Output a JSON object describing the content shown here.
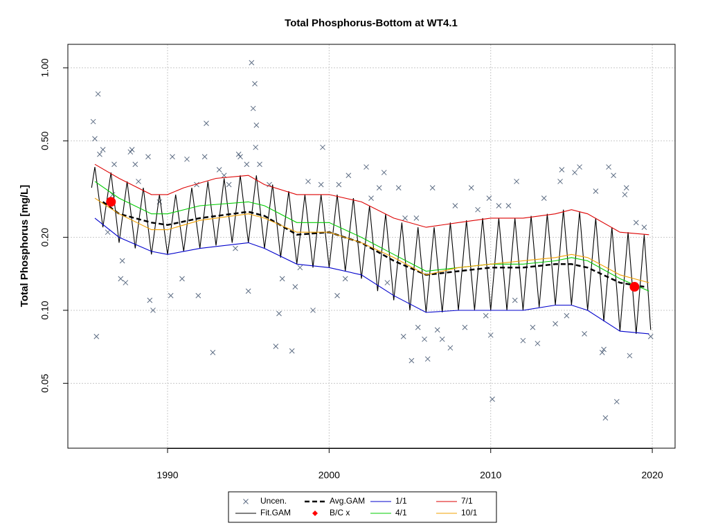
{
  "chart_data": {
    "type": "line",
    "title": "Total Phosphorus-Bottom at WT4.1",
    "y_label": "Total Phosphorus [mg/L]",
    "log_y": true,
    "grid": true,
    "legend": "bottom",
    "xlim": [
      1983.83,
      2021.41
    ],
    "xticks": [
      1990,
      2000,
      2010,
      2020
    ],
    "ylim": [
      0.027,
      1.25
    ],
    "yticks": [
      0.05,
      {
        "value": 0.1,
        "label": "0.10"
      },
      {
        "value": 0.2,
        "label": "0.20"
      },
      {
        "value": 0.5,
        "label": "0.50"
      },
      {
        "value": 1,
        "label": "1.00"
      }
    ],
    "series": [
      {
        "name": "Uncen.",
        "color": "#5b6b82",
        "style": "points",
        "x": [
          1985.4,
          1985.5,
          1985.6,
          1985.7,
          1985.8,
          1986,
          1986.3,
          1986.6,
          1986.7,
          1987.1,
          1987.2,
          1987.4,
          1987.7,
          1987.8,
          1988,
          1988.2,
          1988.8,
          1988.9,
          1989.1,
          1989.5,
          1990.2,
          1990.3,
          1990.9,
          1991.2,
          1991.8,
          1991.9,
          1992.3,
          1992.4,
          1992.8,
          1993.2,
          1993.5,
          1993.8,
          1994.2,
          1994.4,
          1994.5,
          1994.9,
          1995,
          1995.2,
          1995.3,
          1995.4,
          1995.5,
          1995.45,
          1995.7,
          1996.3,
          1996.7,
          1996.9,
          1997.1,
          1997.7,
          1997.9,
          1998.2,
          1998.7,
          1999,
          1999.6,
          1999.5,
          2000.5,
          2000.6,
          2001,
          2001.2,
          2002.3,
          2002.6,
          2003.1,
          2003.4,
          2003.6,
          2004.3,
          2004.6,
          2004.7,
          2005.1,
          2005.4,
          2005.5,
          2005.9,
          2006.1,
          2006.4,
          2006.7,
          2007,
          2007.5,
          2007.8,
          2008.4,
          2008.8,
          2009.2,
          2009.7,
          2009.9,
          2010,
          2010.1,
          2010.5,
          2011.1,
          2011.5,
          2011.6,
          2012,
          2012.6,
          2012.9,
          2013.3,
          2014,
          2014.3,
          2014.4,
          2014.7,
          2015.2,
          2015.5,
          2015.8,
          2016.5,
          2016.9,
          2017,
          2017.1,
          2017.3,
          2017.6,
          2017.8,
          2018.3,
          2018.4,
          2018.6,
          2019,
          2019.5,
          2019.9
        ],
        "values": [
          0.6,
          0.51,
          0.078,
          0.78,
          0.44,
          0.46,
          0.21,
          0.3,
          0.4,
          0.135,
          0.16,
          0.13,
          0.45,
          0.46,
          0.4,
          0.34,
          0.43,
          0.11,
          0.1,
          0.28,
          0.115,
          0.43,
          0.135,
          0.42,
          0.33,
          0.115,
          0.43,
          0.59,
          0.067,
          0.38,
          0.36,
          0.33,
          0.18,
          0.44,
          0.43,
          0.4,
          0.12,
          1.05,
          0.68,
          0.86,
          0.58,
          0.47,
          0.4,
          0.33,
          0.071,
          0.097,
          0.135,
          0.068,
          0.125,
          0.15,
          0.34,
          0.1,
          0.47,
          0.33,
          0.115,
          0.33,
          0.135,
          0.36,
          0.39,
          0.29,
          0.32,
          0.37,
          0.13,
          0.32,
          0.078,
          0.24,
          0.062,
          0.24,
          0.085,
          0.076,
          0.063,
          0.32,
          0.083,
          0.076,
          0.07,
          0.27,
          0.085,
          0.32,
          0.26,
          0.095,
          0.29,
          0.079,
          0.043,
          0.27,
          0.27,
          0.11,
          0.34,
          0.075,
          0.085,
          0.073,
          0.29,
          0.088,
          0.34,
          0.38,
          0.095,
          0.37,
          0.39,
          0.08,
          0.31,
          0.067,
          0.069,
          0.036,
          0.39,
          0.36,
          0.042,
          0.3,
          0.32,
          0.065,
          0.23,
          0.22,
          0.078
        ]
      },
      {
        "name": "Fit.GAM",
        "color": "#000000",
        "style": "line",
        "x": [
          1985.3,
          1985.5,
          1986,
          1986.5,
          1987,
          1987.5,
          1988,
          1988.5,
          1989,
          1989.5,
          1990,
          1990.5,
          1991,
          1991.5,
          1992,
          1992.5,
          1993,
          1993.5,
          1994,
          1994.5,
          1995,
          1995.5,
          1996,
          1996.5,
          1997,
          1997.5,
          1998,
          1998.5,
          1999,
          1999.5,
          2000,
          2000.5,
          2001,
          2001.5,
          2002,
          2002.5,
          2003,
          2003.5,
          2004,
          2004.5,
          2005,
          2005.5,
          2006,
          2006.5,
          2007,
          2007.5,
          2008,
          2008.5,
          2009,
          2009.5,
          2010,
          2010.5,
          2011,
          2011.5,
          2012,
          2012.5,
          2013,
          2013.5,
          2014,
          2014.5,
          2015,
          2015.5,
          2016,
          2016.5,
          2017,
          2017.5,
          2018,
          2018.5,
          2019,
          2019.5,
          2019.9
        ],
        "values": [
          0.32,
          0.39,
          0.22,
          0.37,
          0.19,
          0.34,
          0.18,
          0.32,
          0.17,
          0.3,
          0.17,
          0.3,
          0.175,
          0.32,
          0.18,
          0.34,
          0.185,
          0.35,
          0.19,
          0.36,
          0.19,
          0.36,
          0.18,
          0.33,
          0.165,
          0.31,
          0.155,
          0.3,
          0.15,
          0.3,
          0.15,
          0.3,
          0.145,
          0.29,
          0.135,
          0.27,
          0.12,
          0.25,
          0.11,
          0.23,
          0.1,
          0.22,
          0.098,
          0.22,
          0.098,
          0.23,
          0.1,
          0.235,
          0.1,
          0.24,
          0.1,
          0.24,
          0.1,
          0.24,
          0.1,
          0.245,
          0.103,
          0.25,
          0.105,
          0.26,
          0.105,
          0.255,
          0.1,
          0.24,
          0.09,
          0.22,
          0.082,
          0.21,
          0.08,
          0.205,
          0.083
        ]
      },
      {
        "name": "Avg.GAM",
        "color": "#000000",
        "style": "dashed",
        "x": [
          1986,
          1987,
          1989,
          1990,
          1992,
          1995,
          1996,
          1998,
          2000,
          2002,
          2004,
          2006,
          2008,
          2010,
          2012,
          2014,
          2015,
          2016,
          2018,
          2019.5
        ],
        "values": [
          0.28,
          0.25,
          0.23,
          0.225,
          0.24,
          0.255,
          0.245,
          0.205,
          0.21,
          0.19,
          0.16,
          0.14,
          0.145,
          0.15,
          0.15,
          0.155,
          0.155,
          0.15,
          0.13,
          0.125
        ]
      },
      {
        "name": "B/C x",
        "color": "#ff0000",
        "style": "dots",
        "x": [
          1986.5,
          2018.9
        ],
        "values": [
          0.28,
          0.125
        ]
      },
      {
        "name": "1/1",
        "color": "#0000cc",
        "style": "line",
        "x": [
          1985.5,
          1987,
          1989,
          1990,
          1992,
          1995,
          1996,
          1998,
          2000,
          2002,
          2004,
          2006,
          2008,
          2010,
          2012,
          2014,
          2015,
          2016,
          2018,
          2019.8
        ],
        "values": [
          0.24,
          0.2,
          0.175,
          0.17,
          0.18,
          0.19,
          0.18,
          0.155,
          0.15,
          0.14,
          0.115,
          0.098,
          0.1,
          0.1,
          0.1,
          0.105,
          0.105,
          0.1,
          0.082,
          0.08
        ]
      },
      {
        "name": "4/1",
        "color": "#00cc00",
        "style": "line",
        "x": [
          1985.5,
          1987,
          1989,
          1990,
          1992,
          1995,
          1996,
          1998,
          2000,
          2002,
          2004,
          2006,
          2008,
          2010,
          2012,
          2014,
          2015,
          2016,
          2018,
          2019.8
        ],
        "values": [
          0.34,
          0.29,
          0.25,
          0.25,
          0.27,
          0.28,
          0.27,
          0.23,
          0.23,
          0.2,
          0.17,
          0.145,
          0.15,
          0.155,
          0.155,
          0.16,
          0.165,
          0.16,
          0.135,
          0.12
        ]
      },
      {
        "name": "7/1",
        "color": "#dd0000",
        "style": "line",
        "x": [
          1985.5,
          1987,
          1989,
          1990,
          1991,
          1993,
          1995,
          1996,
          1998,
          2000,
          2002,
          2004,
          2006,
          2008,
          2010,
          2012,
          2014,
          2015,
          2016,
          2018,
          2019.8
        ],
        "values": [
          0.4,
          0.35,
          0.3,
          0.3,
          0.32,
          0.35,
          0.36,
          0.33,
          0.3,
          0.3,
          0.28,
          0.24,
          0.22,
          0.23,
          0.24,
          0.24,
          0.25,
          0.26,
          0.25,
          0.21,
          0.205
        ]
      },
      {
        "name": "10/1",
        "color": "#f0a000",
        "style": "line",
        "x": [
          1985.5,
          1987,
          1989,
          1990,
          1992,
          1995,
          1996,
          1998,
          2000,
          2002,
          2004,
          2006,
          2008,
          2010,
          2012,
          2014,
          2015,
          2016,
          2018,
          2019.8
        ],
        "values": [
          0.29,
          0.25,
          0.215,
          0.215,
          0.235,
          0.25,
          0.24,
          0.21,
          0.21,
          0.19,
          0.165,
          0.14,
          0.15,
          0.155,
          0.16,
          0.165,
          0.17,
          0.165,
          0.14,
          0.13
        ]
      }
    ]
  }
}
